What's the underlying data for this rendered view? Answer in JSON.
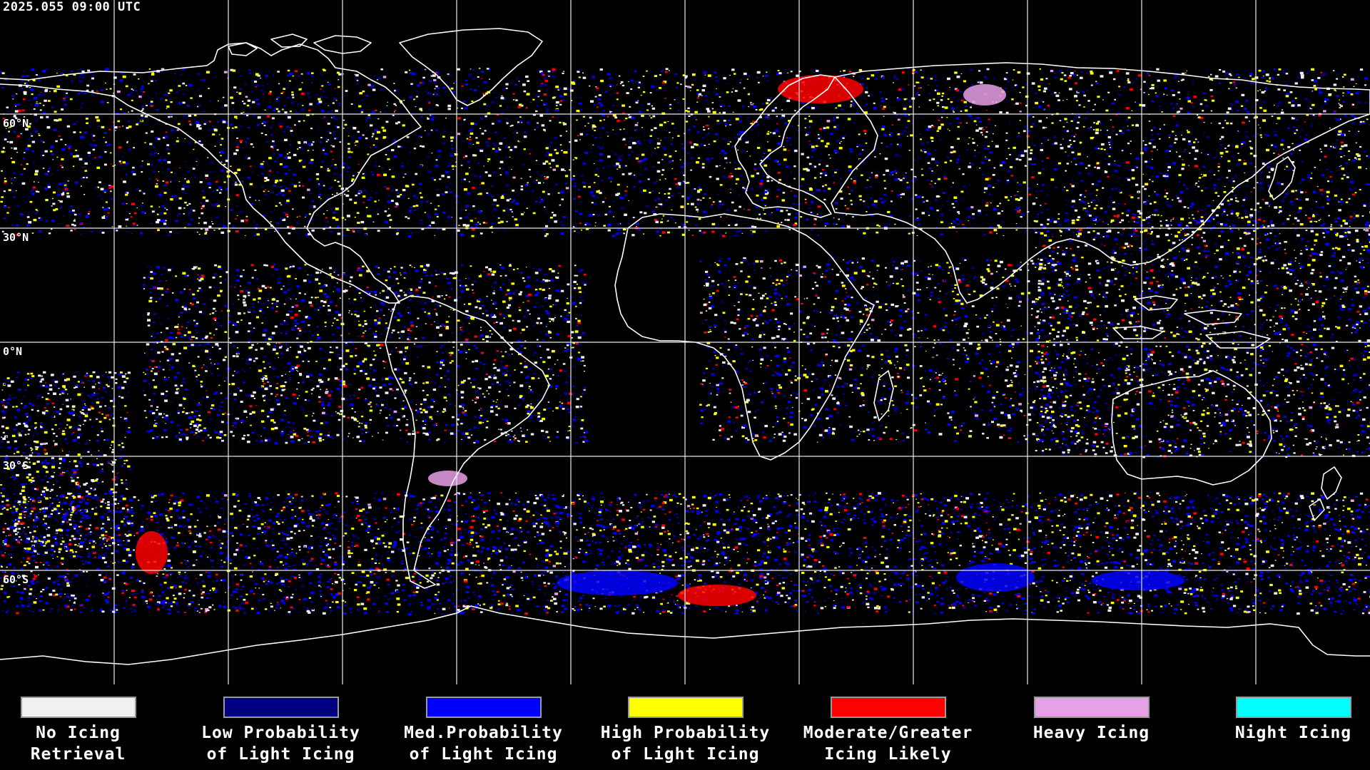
{
  "timestamp": "2025.055 09:00 UTC",
  "lat_labels": [
    "60°N",
    "30°N",
    "0°N",
    "30°S",
    "60°S"
  ],
  "legend": [
    {
      "line1": "No Icing",
      "line2": "Retrieval",
      "color": "#f0f0f0"
    },
    {
      "line1": "Low Probability",
      "line2": "of Light Icing",
      "color": "#000080"
    },
    {
      "line1": "Med.Probability",
      "line2": "of Light Icing",
      "color": "#0000ff"
    },
    {
      "line1": "High Probability",
      "line2": "of Light Icing",
      "color": "#ffff00"
    },
    {
      "line1": "Moderate/Greater",
      "line2": "Icing Likely",
      "color": "#ff0000"
    },
    {
      "line1": "Heavy Icing",
      "line2": "",
      "color": "#e6a0e6"
    },
    {
      "line1": "Night Icing",
      "line2": "",
      "color": "#00ffff"
    }
  ]
}
